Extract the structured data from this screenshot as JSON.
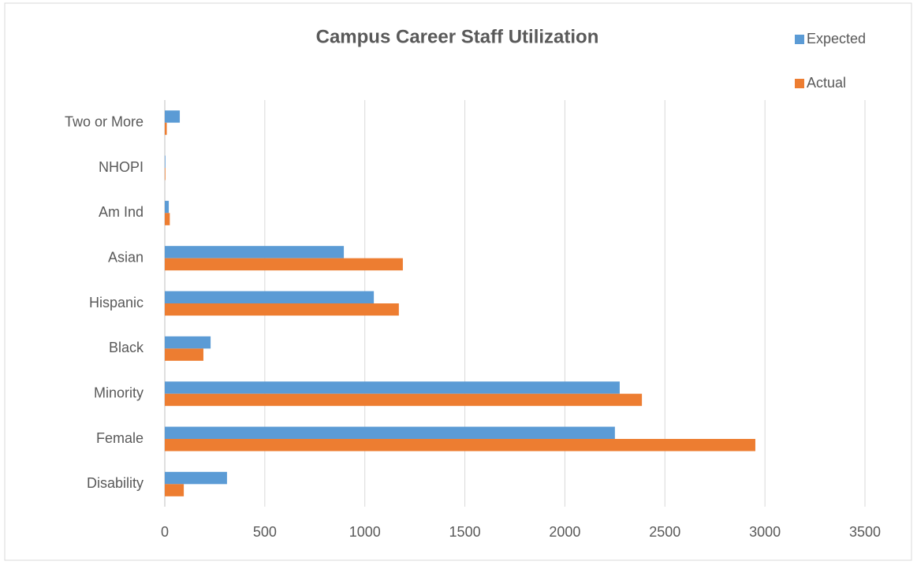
{
  "chart_data": {
    "type": "hbar",
    "title": "Campus Career Staff Utilization",
    "categories": [
      "Disability",
      "Female",
      "Minority",
      "Black",
      "Hispanic",
      "Asian",
      "Am Ind",
      "NHOPI",
      "Two or More"
    ],
    "series": [
      {
        "name": "Expected",
        "color": "#5b9bd5",
        "values": [
          311,
          2250,
          2274,
          229,
          1045,
          895,
          20,
          3,
          75
        ]
      },
      {
        "name": "Actual",
        "color": "#ed7d31",
        "values": [
          95,
          2952,
          2385,
          193,
          1170,
          1190,
          25,
          3,
          10
        ]
      }
    ],
    "xlim": [
      0,
      3500
    ],
    "xticks": [
      0,
      500,
      1000,
      1500,
      2000,
      2500,
      3000,
      3500
    ],
    "grid": true,
    "legend": "top-right"
  }
}
